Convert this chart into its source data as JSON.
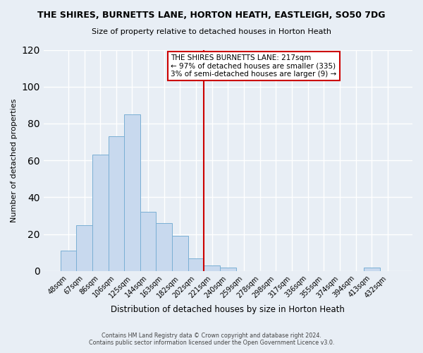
{
  "title": "THE SHIRES, BURNETTS LANE, HORTON HEATH, EASTLEIGH, SO50 7DG",
  "subtitle": "Size of property relative to detached houses in Horton Heath",
  "xlabel": "Distribution of detached houses by size in Horton Heath",
  "ylabel": "Number of detached properties",
  "bin_labels": [
    "48sqm",
    "67sqm",
    "86sqm",
    "106sqm",
    "125sqm",
    "144sqm",
    "163sqm",
    "182sqm",
    "202sqm",
    "221sqm",
    "240sqm",
    "259sqm",
    "278sqm",
    "298sqm",
    "317sqm",
    "336sqm",
    "355sqm",
    "374sqm",
    "394sqm",
    "413sqm",
    "432sqm"
  ],
  "bar_heights": [
    11,
    25,
    63,
    73,
    85,
    32,
    26,
    19,
    7,
    3,
    2,
    0,
    0,
    0,
    0,
    0,
    0,
    0,
    0,
    2,
    0
  ],
  "bar_color": "#c8d9ee",
  "bar_edge_color": "#7aafd4",
  "vline_x_index": 9,
  "vline_color": "#cc0000",
  "annotation_title": "THE SHIRES BURNETTS LANE: 217sqm",
  "annotation_line1": "← 97% of detached houses are smaller (335)",
  "annotation_line2": "3% of semi-detached houses are larger (9) →",
  "annotation_box_color": "white",
  "annotation_box_edge": "#cc0000",
  "ylim": [
    0,
    120
  ],
  "yticks": [
    0,
    20,
    40,
    60,
    80,
    100,
    120
  ],
  "footer1": "Contains HM Land Registry data © Crown copyright and database right 2024.",
  "footer2": "Contains public sector information licensed under the Open Government Licence v3.0.",
  "background_color": "#e8eef5",
  "plot_bg_color": "#e8eef5",
  "grid_color": "#ffffff"
}
